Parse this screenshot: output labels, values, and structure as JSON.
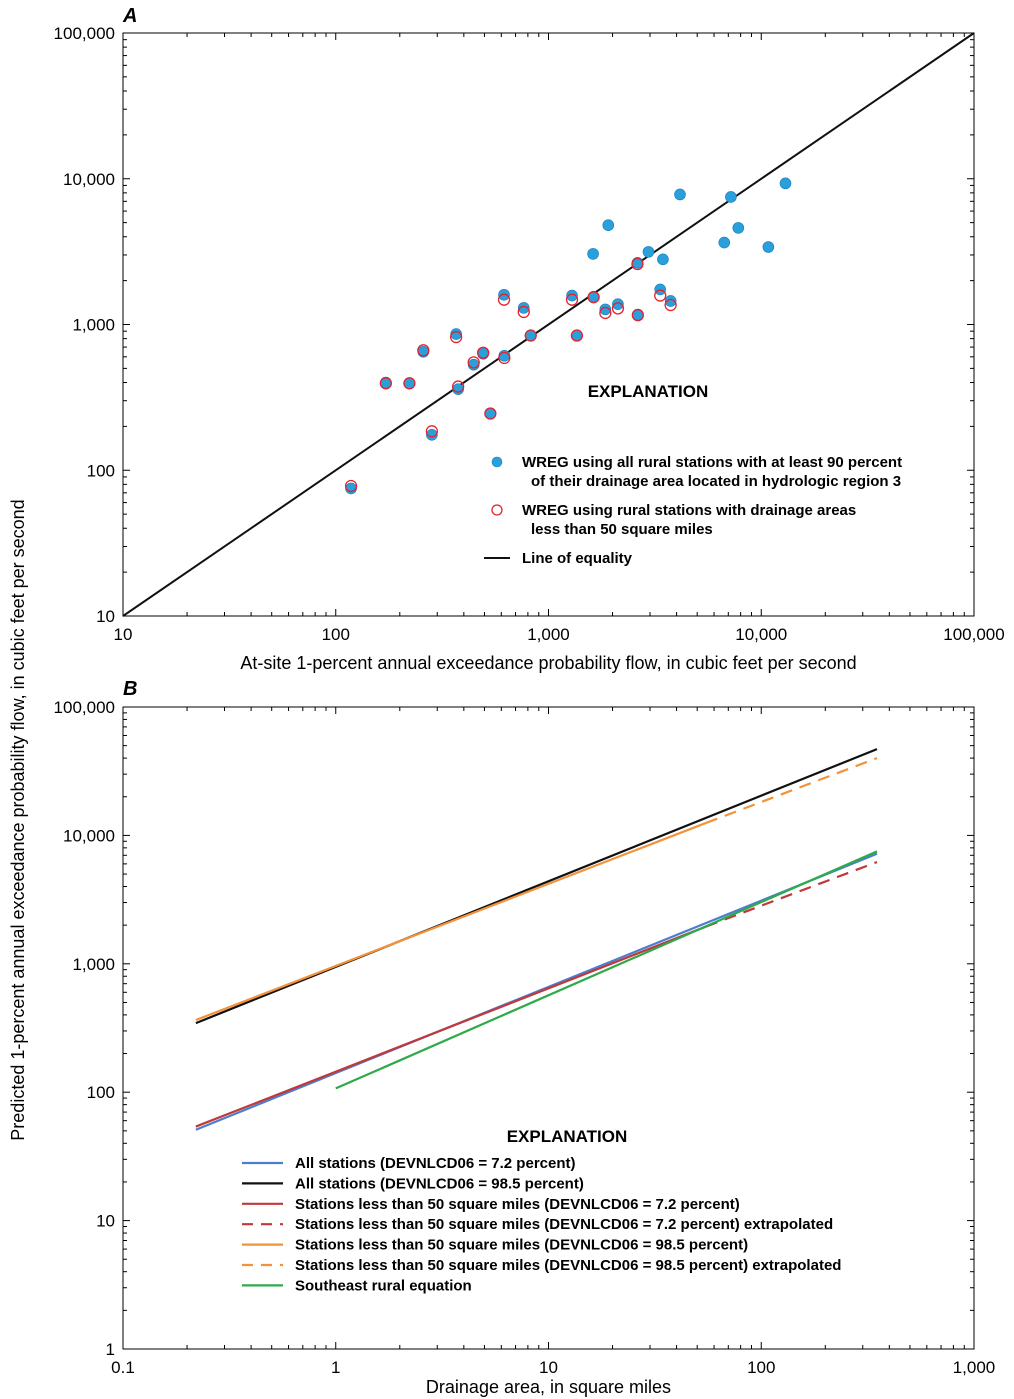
{
  "y_axis_title": "Predicted 1-percent annual exceedance probability flow, in cubic feet per second",
  "chart_data": [
    {
      "panel": "A",
      "type": "scatter",
      "xlabel": "At-site 1-percent annual exceedance probability flow, in cubic feet per second",
      "ylabel": "Predicted 1-percent annual exceedance probability flow, in cubic feet per second",
      "x_scale": "log",
      "y_scale": "log",
      "xlim": [
        10,
        100000
      ],
      "ylim": [
        10,
        100000
      ],
      "x_ticks": [
        "10",
        "100",
        "1,000",
        "10,000",
        "100,000"
      ],
      "y_ticks": [
        "10",
        "100",
        "1,000",
        "10,000",
        "100,000"
      ],
      "grid": false,
      "legend": {
        "title": "EXPLANATION",
        "placement": "center-right",
        "entries": [
          {
            "label": [
              "WREG using all rural stations with at least 90 percent",
              "of their drainage area located in hydrologic region 3"
            ],
            "symbol": "filled-circle",
            "color": "#2a9fdc"
          },
          {
            "label": [
              "WREG using rural stations with drainage areas",
              "less than 50 square miles"
            ],
            "symbol": "open-circle",
            "color": "#e8202a"
          },
          {
            "label": [
              "Line of equality"
            ],
            "symbol": "line",
            "color": "#111111"
          }
        ]
      },
      "series": [
        {
          "name": "WREG using all rural stations with at least 90 percent of their drainage area located in hydrologic region 3",
          "marker": "filled-circle",
          "color": "#2a9fdc",
          "points": [
            [
              118,
              75
            ],
            [
              172,
              400
            ],
            [
              222,
              395
            ],
            [
              258,
              650
            ],
            [
              283,
              175
            ],
            [
              368,
              860
            ],
            [
              376,
              360
            ],
            [
              445,
              530
            ],
            [
              493,
              630
            ],
            [
              533,
              245
            ],
            [
              618,
              1600
            ],
            [
              620,
              610
            ],
            [
              765,
              1300
            ],
            [
              825,
              840
            ],
            [
              1290,
              1580
            ],
            [
              1360,
              840
            ],
            [
              1620,
              3050
            ],
            [
              1630,
              1550
            ],
            [
              1850,
              1270
            ],
            [
              1910,
              4800
            ],
            [
              2120,
              1380
            ],
            [
              2620,
              2650
            ],
            [
              2630,
              1170
            ],
            [
              2950,
              3150
            ],
            [
              3350,
              1740
            ],
            [
              3450,
              2800
            ],
            [
              3750,
              1450
            ],
            [
              4150,
              7800
            ],
            [
              6700,
              3650
            ],
            [
              7200,
              7500
            ],
            [
              7800,
              4600
            ],
            [
              10800,
              3400
            ],
            [
              13000,
              9300
            ]
          ]
        },
        {
          "name": "WREG using rural stations with drainage areas less than 50 square miles",
          "marker": "open-circle",
          "color": "#e8202a",
          "points": [
            [
              118,
              78
            ],
            [
              172,
              395
            ],
            [
              222,
              395
            ],
            [
              258,
              665
            ],
            [
              283,
              185
            ],
            [
              368,
              820
            ],
            [
              376,
              375
            ],
            [
              445,
              550
            ],
            [
              493,
              640
            ],
            [
              533,
              245
            ],
            [
              618,
              1480
            ],
            [
              620,
              590
            ],
            [
              765,
              1220
            ],
            [
              825,
              840
            ],
            [
              1290,
              1480
            ],
            [
              1360,
              840
            ],
            [
              1630,
              1540
            ],
            [
              1850,
              1200
            ],
            [
              2120,
              1290
            ],
            [
              2620,
              2600
            ],
            [
              2630,
              1160
            ],
            [
              3350,
              1580
            ],
            [
              3750,
              1360
            ]
          ]
        },
        {
          "name": "Line of equality",
          "type": "line",
          "color": "#111111",
          "points": [
            [
              10,
              10
            ],
            [
              100000,
              100000
            ]
          ]
        }
      ]
    },
    {
      "panel": "B",
      "type": "line",
      "xlabel": "Drainage area, in square miles",
      "ylabel": "Predicted 1-percent annual exceedance probability flow, in cubic feet per second",
      "x_scale": "log",
      "y_scale": "log",
      "xlim": [
        0.1,
        1000
      ],
      "ylim": [
        1,
        100000
      ],
      "x_ticks": [
        "0.1",
        "1",
        "10",
        "100",
        "1,000"
      ],
      "y_ticks": [
        "1",
        "10",
        "100",
        "1,000",
        "10,000",
        "100,000"
      ],
      "grid": false,
      "legend": {
        "title": "EXPLANATION",
        "placement": "bottom-center",
        "entries": [
          {
            "label": "All stations (DEVNLCD06 = 7.2 percent)",
            "color": "#4a7fd0",
            "dash": false
          },
          {
            "label": "All stations (DEVNLCD06 = 98.5 percent)",
            "color": "#111111",
            "dash": false
          },
          {
            "label": "Stations less than 50 square miles (DEVNLCD06 = 7.2 percent)",
            "color": "#c0383a",
            "dash": false
          },
          {
            "label": "Stations less than 50 square miles (DEVNLCD06 = 7.2 percent) extrapolated",
            "color": "#c0383a",
            "dash": true
          },
          {
            "label": "Stations less than 50 square miles (DEVNLCD06 = 98.5 percent)",
            "color": "#f2923a",
            "dash": false
          },
          {
            "label": "Stations less than 50 square miles (DEVNLCD06 = 98.5 percent) extrapolated",
            "color": "#f2923a",
            "dash": true
          },
          {
            "label": "Southeast rural equation",
            "color": "#2eaa48",
            "dash": false
          }
        ]
      },
      "series": [
        {
          "name": "All stations (DEVNLCD06 = 98.5 percent)",
          "color": "#111111",
          "dash": false,
          "points": [
            [
              0.22,
              345
            ],
            [
              350,
              47000
            ]
          ]
        },
        {
          "name": "Stations less than 50 square miles (DEVNLCD06 = 98.5 percent)",
          "color": "#f2923a",
          "dash": false,
          "points": [
            [
              0.22,
              365
            ],
            [
              55,
              12500
            ]
          ]
        },
        {
          "name": "Stations less than 50 square miles (DEVNLCD06 = 98.5 percent) extrapolated",
          "color": "#f2923a",
          "dash": true,
          "points": [
            [
              55,
              12500
            ],
            [
              350,
              40000
            ]
          ]
        },
        {
          "name": "All stations (DEVNLCD06 = 7.2 percent)",
          "color": "#4a7fd0",
          "dash": false,
          "points": [
            [
              0.22,
              51
            ],
            [
              350,
              7200
            ]
          ]
        },
        {
          "name": "Stations less than 50 square miles (DEVNLCD06 = 7.2 percent)",
          "color": "#c0383a",
          "dash": false,
          "points": [
            [
              0.22,
              54
            ],
            [
              55,
              1950
            ]
          ]
        },
        {
          "name": "Stations less than 50 square miles (DEVNLCD06 = 7.2 percent) extrapolated",
          "color": "#c0383a",
          "dash": true,
          "points": [
            [
              55,
              1950
            ],
            [
              350,
              6200
            ]
          ]
        },
        {
          "name": "Southeast rural equation",
          "color": "#2eaa48",
          "dash": false,
          "points": [
            [
              1,
              107
            ],
            [
              350,
              7500
            ]
          ]
        }
      ]
    }
  ]
}
